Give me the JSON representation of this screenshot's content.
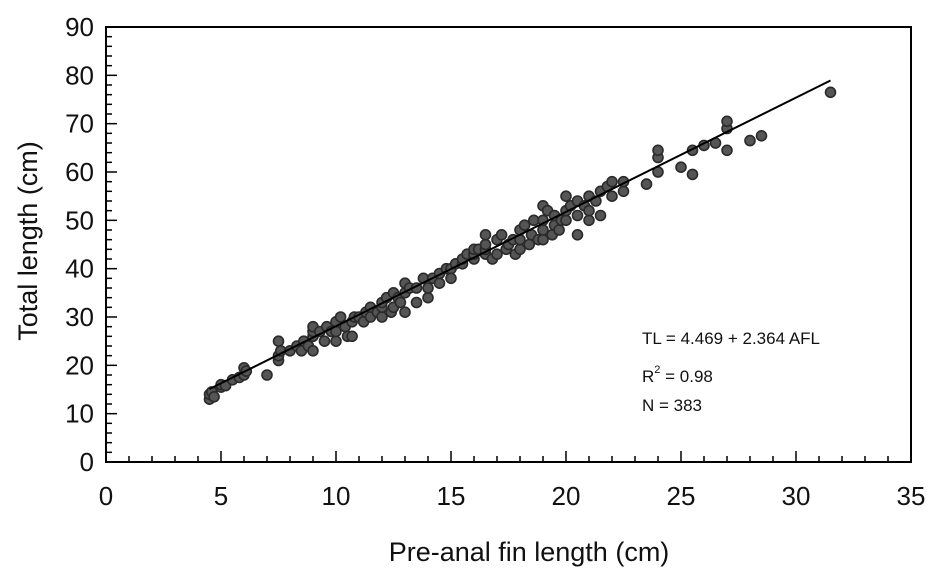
{
  "chart_data": {
    "type": "scatter",
    "title": "",
    "xlabel": "Pre-anal fin length (cm)",
    "ylabel": "Total length (cm)",
    "xlim": [
      0,
      35
    ],
    "ylim": [
      0,
      90
    ],
    "xticks": [
      "0",
      "5",
      "10",
      "15",
      "20",
      "25",
      "30",
      "35"
    ],
    "yticks": [
      "0",
      "10",
      "20",
      "30",
      "40",
      "50",
      "60",
      "70",
      "80",
      "90"
    ],
    "grid": false,
    "legend": "none",
    "annotations": {
      "equation": "TL = 4.469 + 2.364 AFL",
      "r2_prefix": "R",
      "r2_sup": "2",
      "r2_value": " = 0.98",
      "n": "N = 383"
    },
    "fit": {
      "intercept": 4.469,
      "slope": 2.364,
      "x_range": [
        4.5,
        31.5
      ]
    },
    "colors": {
      "marker": "#2a2a2a",
      "marker_fill": "#555555",
      "line": "#000000",
      "axis": "#000000"
    },
    "points": [
      [
        4.5,
        13
      ],
      [
        4.5,
        14
      ],
      [
        4.6,
        14.5
      ],
      [
        4.7,
        13.5
      ],
      [
        5,
        15.5
      ],
      [
        5,
        16
      ],
      [
        5.2,
        15.8
      ],
      [
        5.5,
        17
      ],
      [
        5.8,
        17.5
      ],
      [
        6,
        18
      ],
      [
        6,
        19.5
      ],
      [
        6.1,
        18.8
      ],
      [
        7,
        18
      ],
      [
        7.5,
        21
      ],
      [
        7.5,
        22
      ],
      [
        7.5,
        25
      ],
      [
        7.6,
        23
      ],
      [
        8,
        23
      ],
      [
        8.3,
        24
      ],
      [
        8.5,
        23
      ],
      [
        8.6,
        25
      ],
      [
        8.8,
        24
      ],
      [
        9,
        23
      ],
      [
        9,
        26
      ],
      [
        9,
        27
      ],
      [
        9,
        28
      ],
      [
        9.3,
        27
      ],
      [
        9.5,
        25
      ],
      [
        9.6,
        28
      ],
      [
        9.8,
        27
      ],
      [
        10,
        25
      ],
      [
        10,
        27
      ],
      [
        10,
        29
      ],
      [
        10.2,
        30
      ],
      [
        10.4,
        28
      ],
      [
        10.5,
        26
      ],
      [
        10.7,
        26
      ],
      [
        10.7,
        29
      ],
      [
        10.8,
        30
      ],
      [
        11,
        30
      ],
      [
        11.2,
        29
      ],
      [
        11.3,
        31
      ],
      [
        11.5,
        32
      ],
      [
        11.5,
        30
      ],
      [
        11.8,
        31
      ],
      [
        12,
        30
      ],
      [
        12,
        32
      ],
      [
        12,
        33
      ],
      [
        12.2,
        34
      ],
      [
        12.4,
        31
      ],
      [
        12.5,
        32
      ],
      [
        12.5,
        35
      ],
      [
        12.7,
        34
      ],
      [
        12.8,
        33
      ],
      [
        13,
        31
      ],
      [
        13,
        35
      ],
      [
        13,
        37
      ],
      [
        13.2,
        36
      ],
      [
        13.5,
        33
      ],
      [
        13.5,
        36
      ],
      [
        13.8,
        38
      ],
      [
        14,
        34
      ],
      [
        14,
        36
      ],
      [
        14.2,
        38
      ],
      [
        14.5,
        37
      ],
      [
        14.5,
        39
      ],
      [
        14.8,
        40
      ],
      [
        15,
        40
      ],
      [
        15,
        38
      ],
      [
        15.2,
        41
      ],
      [
        15.5,
        41
      ],
      [
        15.5,
        42
      ],
      [
        15.7,
        43
      ],
      [
        16,
        42
      ],
      [
        16,
        43
      ],
      [
        16,
        44
      ],
      [
        16.2,
        44
      ],
      [
        16.5,
        43
      ],
      [
        16.5,
        44
      ],
      [
        16.5,
        45
      ],
      [
        16.5,
        47
      ],
      [
        16.8,
        42
      ],
      [
        17,
        43
      ],
      [
        17,
        46
      ],
      [
        17.2,
        47
      ],
      [
        17.4,
        44
      ],
      [
        17.5,
        45
      ],
      [
        17.7,
        46
      ],
      [
        17.8,
        43
      ],
      [
        18,
        44
      ],
      [
        18,
        46
      ],
      [
        18,
        48
      ],
      [
        18.2,
        49
      ],
      [
        18.4,
        45
      ],
      [
        18.5,
        47
      ],
      [
        18.6,
        50
      ],
      [
        18.8,
        46
      ],
      [
        19,
        46
      ],
      [
        19,
        48
      ],
      [
        19,
        50
      ],
      [
        19,
        53
      ],
      [
        19.2,
        52
      ],
      [
        19.4,
        47
      ],
      [
        19.5,
        49
      ],
      [
        19.5,
        51
      ],
      [
        19.7,
        48
      ],
      [
        19.8,
        50
      ],
      [
        20,
        50
      ],
      [
        20,
        52
      ],
      [
        20,
        55
      ],
      [
        20.2,
        53
      ],
      [
        20.5,
        47
      ],
      [
        20.5,
        51
      ],
      [
        20.5,
        54
      ],
      [
        20.8,
        53
      ],
      [
        21,
        50
      ],
      [
        21,
        52
      ],
      [
        21,
        55
      ],
      [
        21.3,
        54
      ],
      [
        21.5,
        51
      ],
      [
        21.5,
        56
      ],
      [
        21.8,
        57
      ],
      [
        22,
        55
      ],
      [
        22,
        58
      ],
      [
        22.5,
        56
      ],
      [
        22.5,
        58
      ],
      [
        23.5,
        57.5
      ],
      [
        24,
        60
      ],
      [
        24,
        63
      ],
      [
        24,
        64.5
      ],
      [
        25,
        61
      ],
      [
        25.5,
        59.5
      ],
      [
        25.5,
        64.5
      ],
      [
        26,
        65.5
      ],
      [
        26.5,
        66
      ],
      [
        27,
        64.5
      ],
      [
        27,
        69
      ],
      [
        27,
        70.5
      ],
      [
        28,
        66.5
      ],
      [
        28.5,
        67.5
      ],
      [
        31.5,
        76.5
      ]
    ]
  }
}
